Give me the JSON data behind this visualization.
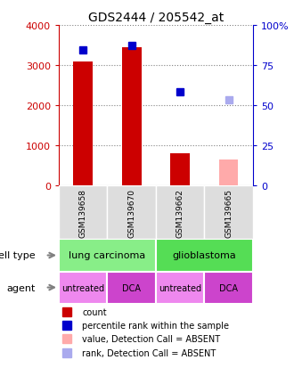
{
  "title": "GDS2444 / 205542_at",
  "samples": [
    "GSM139658",
    "GSM139670",
    "GSM139662",
    "GSM139665"
  ],
  "bar_values": [
    3100,
    3450,
    800,
    0
  ],
  "bar_colors": [
    "#cc0000",
    "#cc0000",
    "#cc0000",
    null
  ],
  "absent_bar_values": [
    0,
    0,
    0,
    650
  ],
  "absent_bar_color": "#ffaaaa",
  "percentile_values": [
    3380,
    3480,
    2330,
    0
  ],
  "absent_percentile_values": [
    0,
    0,
    0,
    2130
  ],
  "percentile_color": "#0000cc",
  "absent_percentile_color": "#aaaaee",
  "ylim_left": [
    0,
    4000
  ],
  "ylim_right": [
    0,
    100
  ],
  "yticks_left": [
    0,
    1000,
    2000,
    3000,
    4000
  ],
  "ytick_labels_left": [
    "0",
    "1000",
    "2000",
    "3000",
    "4000"
  ],
  "yticks_right": [
    0,
    25,
    50,
    75,
    100
  ],
  "ytick_labels_right": [
    "0",
    "25",
    "50",
    "75",
    "100%"
  ],
  "cell_type_groups": [
    [
      "lung carcinoma",
      0,
      2
    ],
    [
      "glioblastoma",
      2,
      4
    ]
  ],
  "cell_type_colors": [
    "#88ee88",
    "#55dd55"
  ],
  "agent_labels": [
    "untreated",
    "DCA",
    "untreated",
    "DCA"
  ],
  "agent_colors": [
    "#ee88ee",
    "#cc44cc",
    "#ee88ee",
    "#cc44cc"
  ],
  "row_labels": [
    "cell type",
    "agent"
  ],
  "legend_items": [
    {
      "label": "count",
      "color": "#cc0000"
    },
    {
      "label": "percentile rank within the sample",
      "color": "#0000cc"
    },
    {
      "label": "value, Detection Call = ABSENT",
      "color": "#ffaaaa"
    },
    {
      "label": "rank, Detection Call = ABSENT",
      "color": "#aaaaee"
    }
  ],
  "left_axis_color": "#cc0000",
  "right_axis_color": "#0000cc",
  "background_color": "#ffffff"
}
